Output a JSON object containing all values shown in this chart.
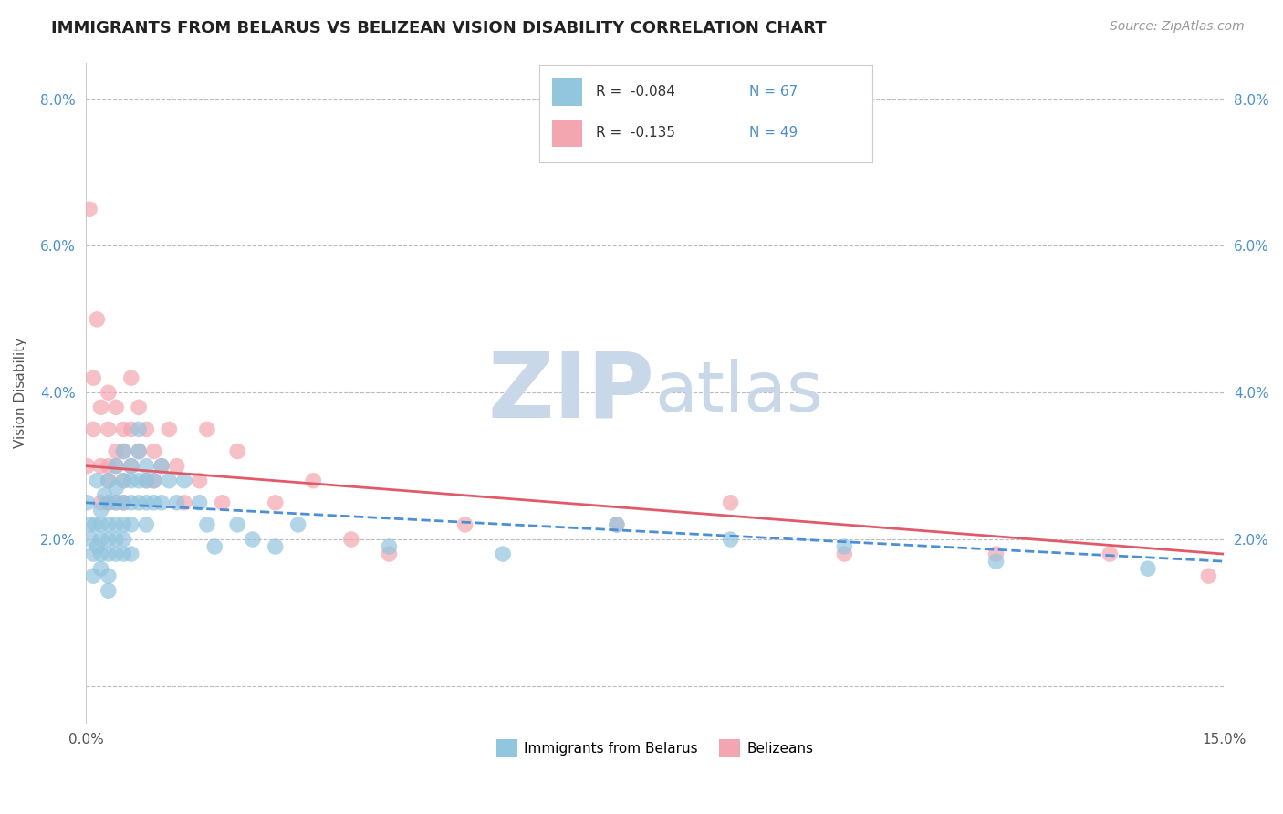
{
  "title": "IMMIGRANTS FROM BELARUS VS BELIZEAN VISION DISABILITY CORRELATION CHART",
  "source_text": "Source: ZipAtlas.com",
  "ylabel": "Vision Disability",
  "xlim": [
    0.0,
    0.15
  ],
  "ylim": [
    -0.005,
    0.085
  ],
  "yticks": [
    0.0,
    0.02,
    0.04,
    0.06,
    0.08
  ],
  "ytick_labels": [
    "",
    "2.0%",
    "4.0%",
    "6.0%",
    "8.0%"
  ],
  "xticks": [
    0.0,
    0.15
  ],
  "xtick_labels": [
    "0.0%",
    "15.0%"
  ],
  "blue_R": -0.084,
  "blue_N": 67,
  "pink_R": -0.135,
  "pink_N": 49,
  "blue_color": "#92C5DE",
  "pink_color": "#F4A6B0",
  "blue_line_color": "#4A90D9",
  "pink_line_color": "#E05A6A",
  "watermark_zip": "ZIP",
  "watermark_atlas": "atlas",
  "watermark_color": "#C8D8E8",
  "legend_label_blue": "Immigrants from Belarus",
  "legend_label_pink": "Belizeans",
  "blue_scatter_x": [
    0.0002,
    0.0005,
    0.0007,
    0.001,
    0.001,
    0.0012,
    0.0015,
    0.0015,
    0.002,
    0.002,
    0.002,
    0.002,
    0.002,
    0.0025,
    0.003,
    0.003,
    0.003,
    0.003,
    0.003,
    0.003,
    0.003,
    0.004,
    0.004,
    0.004,
    0.004,
    0.004,
    0.004,
    0.005,
    0.005,
    0.005,
    0.005,
    0.005,
    0.005,
    0.006,
    0.006,
    0.006,
    0.006,
    0.006,
    0.007,
    0.007,
    0.007,
    0.007,
    0.008,
    0.008,
    0.008,
    0.008,
    0.009,
    0.009,
    0.01,
    0.01,
    0.011,
    0.012,
    0.013,
    0.015,
    0.016,
    0.017,
    0.02,
    0.022,
    0.025,
    0.028,
    0.04,
    0.055,
    0.07,
    0.085,
    0.1,
    0.12,
    0.14
  ],
  "blue_scatter_y": [
    0.025,
    0.022,
    0.02,
    0.018,
    0.015,
    0.022,
    0.019,
    0.028,
    0.024,
    0.022,
    0.02,
    0.018,
    0.016,
    0.026,
    0.025,
    0.022,
    0.02,
    0.018,
    0.015,
    0.013,
    0.028,
    0.03,
    0.027,
    0.025,
    0.022,
    0.02,
    0.018,
    0.032,
    0.028,
    0.025,
    0.022,
    0.02,
    0.018,
    0.03,
    0.028,
    0.025,
    0.022,
    0.018,
    0.035,
    0.032,
    0.028,
    0.025,
    0.03,
    0.028,
    0.025,
    0.022,
    0.028,
    0.025,
    0.03,
    0.025,
    0.028,
    0.025,
    0.028,
    0.025,
    0.022,
    0.019,
    0.022,
    0.02,
    0.019,
    0.022,
    0.019,
    0.018,
    0.022,
    0.02,
    0.019,
    0.017,
    0.016
  ],
  "pink_scatter_x": [
    0.0002,
    0.0005,
    0.001,
    0.001,
    0.0015,
    0.002,
    0.002,
    0.002,
    0.003,
    0.003,
    0.003,
    0.003,
    0.003,
    0.004,
    0.004,
    0.004,
    0.004,
    0.005,
    0.005,
    0.005,
    0.005,
    0.006,
    0.006,
    0.006,
    0.007,
    0.007,
    0.008,
    0.008,
    0.009,
    0.009,
    0.01,
    0.011,
    0.012,
    0.013,
    0.015,
    0.016,
    0.018,
    0.02,
    0.025,
    0.03,
    0.035,
    0.04,
    0.05,
    0.07,
    0.085,
    0.1,
    0.12,
    0.135,
    0.148
  ],
  "pink_scatter_y": [
    0.03,
    0.065,
    0.035,
    0.042,
    0.05,
    0.038,
    0.03,
    0.025,
    0.04,
    0.035,
    0.03,
    0.028,
    0.025,
    0.038,
    0.032,
    0.03,
    0.025,
    0.035,
    0.032,
    0.028,
    0.025,
    0.042,
    0.035,
    0.03,
    0.038,
    0.032,
    0.035,
    0.028,
    0.032,
    0.028,
    0.03,
    0.035,
    0.03,
    0.025,
    0.028,
    0.035,
    0.025,
    0.032,
    0.025,
    0.028,
    0.02,
    0.018,
    0.022,
    0.022,
    0.025,
    0.018,
    0.018,
    0.018,
    0.015
  ],
  "blue_trendline_x": [
    0.0,
    0.15
  ],
  "blue_trendline_y": [
    0.025,
    0.017
  ],
  "pink_trendline_x": [
    0.0,
    0.15
  ],
  "pink_trendline_y": [
    0.03,
    0.018
  ],
  "title_fontsize": 13,
  "axis_label_fontsize": 11,
  "tick_fontsize": 11,
  "source_fontsize": 10
}
